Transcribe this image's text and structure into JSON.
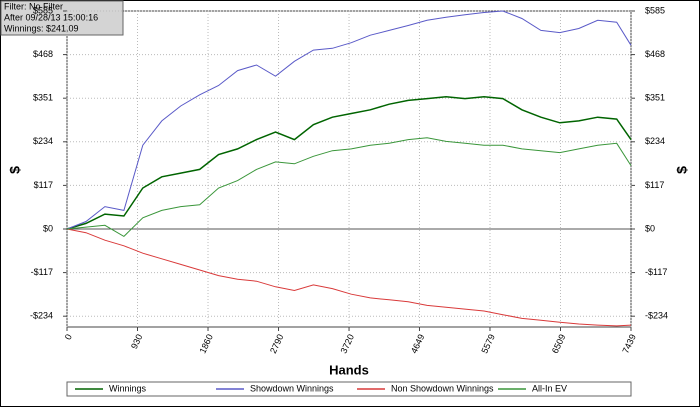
{
  "chart_data": {
    "type": "line",
    "annotations": [
      "Filter: No Filter",
      "After 09/28/13 15:00:16",
      "Winnings: $241.09"
    ],
    "xlabel": "Hands",
    "ylabel": "$",
    "x": [
      0,
      250,
      500,
      750,
      1000,
      1250,
      1500,
      1750,
      2000,
      2250,
      2500,
      2750,
      3000,
      3250,
      3500,
      3750,
      4000,
      4250,
      4500,
      4750,
      5000,
      5250,
      5500,
      5750,
      6000,
      6250,
      6500,
      6750,
      7000,
      7250,
      7439
    ],
    "series": [
      {
        "name": "Winnings",
        "color": "#006400",
        "values": [
          0,
          15,
          40,
          35,
          110,
          140,
          150,
          160,
          200,
          215,
          240,
          260,
          240,
          280,
          300,
          310,
          320,
          335,
          345,
          350,
          355,
          350,
          355,
          350,
          320,
          300,
          285,
          290,
          300,
          295,
          240
        ]
      },
      {
        "name": "Showdown Winnings",
        "color": "#5a5ac8",
        "values": [
          0,
          20,
          60,
          50,
          225,
          290,
          330,
          360,
          385,
          425,
          440,
          410,
          450,
          480,
          485,
          500,
          520,
          533,
          546,
          560,
          568,
          575,
          581,
          585,
          565,
          533,
          527,
          538,
          560,
          555,
          493
        ]
      },
      {
        "name": "Non Showdown Winnings",
        "color": "#d93a3a",
        "values": [
          0,
          -10,
          -30,
          -45,
          -65,
          -80,
          -95,
          -110,
          -125,
          -135,
          -140,
          -155,
          -165,
          -150,
          -160,
          -175,
          -185,
          -190,
          -195,
          -205,
          -210,
          -215,
          -220,
          -230,
          -240,
          -245,
          -250,
          -255,
          -258,
          -260,
          -258
        ]
      },
      {
        "name": "All-In EV",
        "color": "#3a963a",
        "values": [
          0,
          5,
          10,
          -20,
          30,
          50,
          60,
          65,
          110,
          130,
          160,
          180,
          175,
          195,
          210,
          215,
          225,
          230,
          240,
          245,
          235,
          230,
          225,
          225,
          215,
          210,
          205,
          215,
          225,
          230,
          170
        ]
      }
    ],
    "xlim": [
      0,
      7439
    ],
    "xticks": [
      0,
      930,
      1860,
      2790,
      3720,
      4649,
      5579,
      6509,
      7439
    ],
    "ylim": [
      -263,
      585
    ],
    "yticks": [
      {
        "value": 585,
        "label": "$585"
      },
      {
        "value": 468,
        "label": "$468"
      },
      {
        "value": 351,
        "label": "$351"
      },
      {
        "value": 234,
        "label": "$234"
      },
      {
        "value": 117,
        "label": "$117"
      },
      {
        "value": 0,
        "label": "$0"
      },
      {
        "value": -117,
        "label": "-$117"
      },
      {
        "value": -234,
        "label": "-$234"
      }
    ],
    "grid": true
  }
}
